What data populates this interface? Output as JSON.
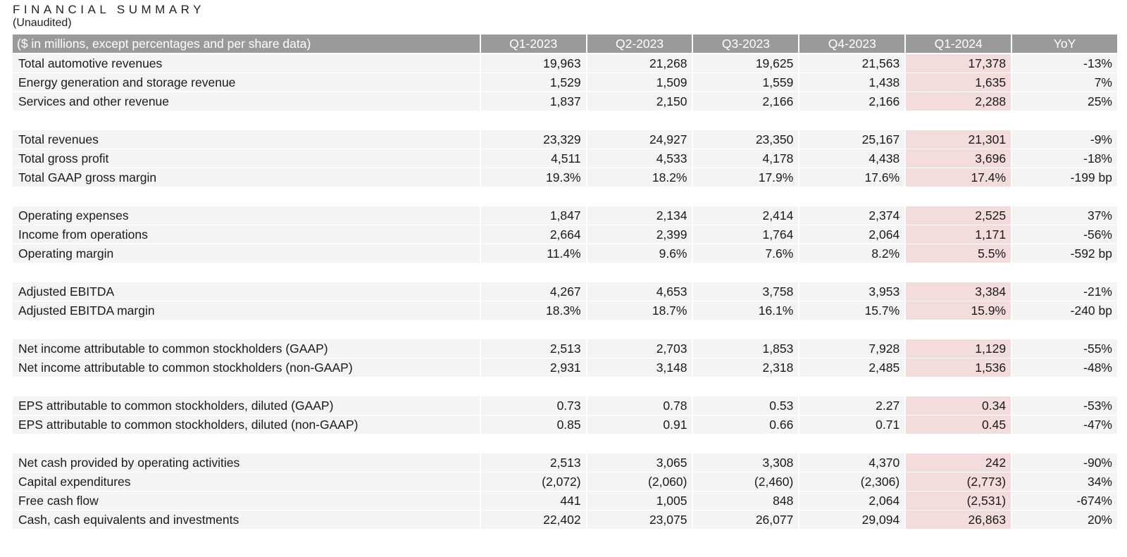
{
  "header": {
    "title": "FINANCIAL SUMMARY",
    "subtitle": "(Unaudited)"
  },
  "colors": {
    "header_bg": "#9a9a9a",
    "row_bg": "#f4f4f4",
    "highlight_bg": "#f2dcdc"
  },
  "table": {
    "label_header": "($ in millions, except percentages and per share data)",
    "columns": [
      "Q1-2023",
      "Q2-2023",
      "Q3-2023",
      "Q4-2023",
      "Q1-2024",
      "YoY"
    ],
    "highlight_column_index": 4,
    "groups": [
      {
        "rows": [
          {
            "label": "Total automotive revenues",
            "values": [
              "19,963",
              "21,268",
              "19,625",
              "21,563",
              "17,378",
              "-13%"
            ]
          },
          {
            "label": "Energy generation and storage revenue",
            "values": [
              "1,529",
              "1,509",
              "1,559",
              "1,438",
              "1,635",
              "7%"
            ]
          },
          {
            "label": "Services and other revenue",
            "values": [
              "1,837",
              "2,150",
              "2,166",
              "2,166",
              "2,288",
              "25%"
            ]
          }
        ]
      },
      {
        "rows": [
          {
            "label": "Total revenues",
            "values": [
              "23,329",
              "24,927",
              "23,350",
              "25,167",
              "21,301",
              "-9%"
            ]
          },
          {
            "label": "Total gross profit",
            "values": [
              "4,511",
              "4,533",
              "4,178",
              "4,438",
              "3,696",
              "-18%"
            ]
          },
          {
            "label": "Total GAAP gross margin",
            "values": [
              "19.3%",
              "18.2%",
              "17.9%",
              "17.6%",
              "17.4%",
              "-199 bp"
            ]
          }
        ]
      },
      {
        "rows": [
          {
            "label": "Operating expenses",
            "values": [
              "1,847",
              "2,134",
              "2,414",
              "2,374",
              "2,525",
              "37%"
            ]
          },
          {
            "label": "Income from operations",
            "values": [
              "2,664",
              "2,399",
              "1,764",
              "2,064",
              "1,171",
              "-56%"
            ]
          },
          {
            "label": "Operating margin",
            "values": [
              "11.4%",
              "9.6%",
              "7.6%",
              "8.2%",
              "5.5%",
              "-592 bp"
            ]
          }
        ]
      },
      {
        "rows": [
          {
            "label": "Adjusted EBITDA",
            "values": [
              "4,267",
              "4,653",
              "3,758",
              "3,953",
              "3,384",
              "-21%"
            ]
          },
          {
            "label": "Adjusted EBITDA margin",
            "values": [
              "18.3%",
              "18.7%",
              "16.1%",
              "15.7%",
              "15.9%",
              "-240 bp"
            ]
          }
        ]
      },
      {
        "rows": [
          {
            "label": "Net income attributable to common stockholders (GAAP)",
            "values": [
              "2,513",
              "2,703",
              "1,853",
              "7,928",
              "1,129",
              "-55%"
            ]
          },
          {
            "label": "Net income attributable to common stockholders (non-GAAP)",
            "values": [
              "2,931",
              "3,148",
              "2,318",
              "2,485",
              "1,536",
              "-48%"
            ]
          }
        ]
      },
      {
        "rows": [
          {
            "label": "EPS attributable to common stockholders, diluted (GAAP)",
            "values": [
              "0.73",
              "0.78",
              "0.53",
              "2.27",
              "0.34",
              "-53%"
            ]
          },
          {
            "label": "EPS attributable to common stockholders, diluted (non-GAAP)",
            "values": [
              "0.85",
              "0.91",
              "0.66",
              "0.71",
              "0.45",
              "-47%"
            ]
          }
        ]
      },
      {
        "rows": [
          {
            "label": "Net cash provided by operating activities",
            "values": [
              "2,513",
              "3,065",
              "3,308",
              "4,370",
              "242",
              "-90%"
            ]
          },
          {
            "label": "Capital expenditures",
            "values": [
              "(2,072)",
              "(2,060)",
              "(2,460)",
              "(2,306)",
              "(2,773)",
              "34%"
            ]
          },
          {
            "label": "Free cash flow",
            "values": [
              "441",
              "1,005",
              "848",
              "2,064",
              "(2,531)",
              "-674%"
            ]
          },
          {
            "label": "Cash, cash equivalents and investments",
            "values": [
              "22,402",
              "23,075",
              "26,077",
              "29,094",
              "26,863",
              "20%"
            ]
          }
        ]
      }
    ]
  }
}
